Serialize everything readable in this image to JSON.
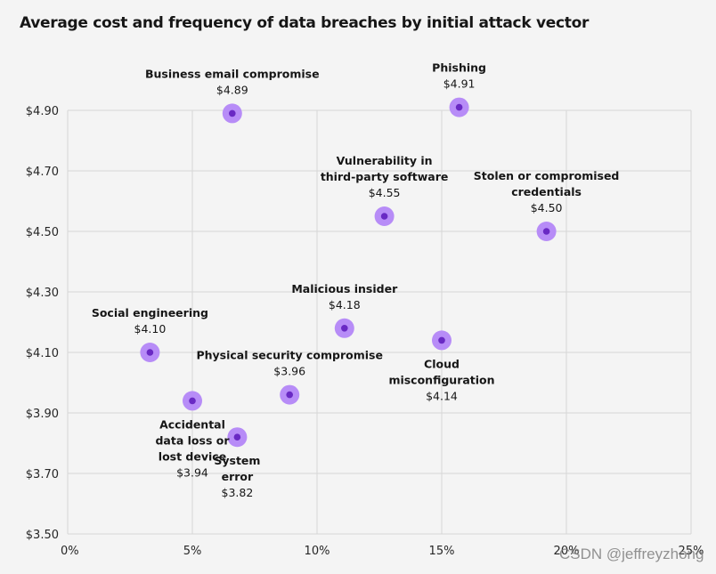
{
  "chart_data": {
    "type": "scatter",
    "title": "Average cost and frequency of data breaches by initial attack vector",
    "xlabel": "",
    "ylabel": "",
    "xlim": [
      0,
      25
    ],
    "ylim": [
      3.5,
      4.9
    ],
    "x_ticks": [
      "0%",
      "5%",
      "10%",
      "15%",
      "20%",
      "25%"
    ],
    "x_tick_values": [
      0,
      5,
      10,
      15,
      20,
      25
    ],
    "y_ticks": [
      "$4.90",
      "$4.70",
      "$4.50",
      "$4.30",
      "$4.10",
      "$3.90",
      "$3.70",
      "$3.50"
    ],
    "y_tick_values": [
      4.9,
      4.7,
      4.5,
      4.3,
      4.1,
      3.9,
      3.7,
      3.5
    ],
    "grid": true,
    "colors": {
      "marker_outer": "#b78cf7",
      "marker_inner": "#6929c4",
      "grid": "#d6d6d6",
      "background": "#f4f4f4"
    },
    "points": [
      {
        "name": "Business email compromise",
        "label_lines": [
          "Business email compromise"
        ],
        "value_label": "$4.89",
        "x": 6.6,
        "y": 4.89,
        "label_pos": "above"
      },
      {
        "name": "Phishing",
        "label_lines": [
          "Phishing"
        ],
        "value_label": "$4.91",
        "x": 15.7,
        "y": 4.91,
        "label_pos": "above"
      },
      {
        "name": "Vulnerability in third-party software",
        "label_lines": [
          "Vulnerability in",
          "third-party software"
        ],
        "value_label": "$4.55",
        "x": 12.7,
        "y": 4.55,
        "label_pos": "above"
      },
      {
        "name": "Stolen or compromised credentials",
        "label_lines": [
          "Stolen or compromised",
          "credentials"
        ],
        "value_label": "$4.50",
        "x": 19.2,
        "y": 4.5,
        "label_pos": "above"
      },
      {
        "name": "Malicious insider",
        "label_lines": [
          "Malicious insider"
        ],
        "value_label": "$4.18",
        "x": 11.1,
        "y": 4.18,
        "label_pos": "above"
      },
      {
        "name": "Cloud misconfiguration",
        "label_lines": [
          "Cloud",
          "misconfiguration"
        ],
        "value_label": "$4.14",
        "x": 15.0,
        "y": 4.14,
        "label_pos": "below"
      },
      {
        "name": "Social engineering",
        "label_lines": [
          "Social engineering"
        ],
        "value_label": "$4.10",
        "x": 3.3,
        "y": 4.1,
        "label_pos": "above"
      },
      {
        "name": "Physical security compromise",
        "label_lines": [
          "Physical security compromise"
        ],
        "value_label": "$3.96",
        "x": 8.9,
        "y": 3.96,
        "label_pos": "above"
      },
      {
        "name": "Accidental data loss or lost device",
        "label_lines": [
          "Accidental",
          "data loss or",
          "lost device"
        ],
        "value_label": "$3.94",
        "x": 5.0,
        "y": 3.94,
        "label_pos": "below"
      },
      {
        "name": "System error",
        "label_lines": [
          "System",
          "error"
        ],
        "value_label": "$3.82",
        "x": 6.8,
        "y": 3.82,
        "label_pos": "below"
      }
    ]
  },
  "watermark": "CSDN @jeffreyzhong"
}
